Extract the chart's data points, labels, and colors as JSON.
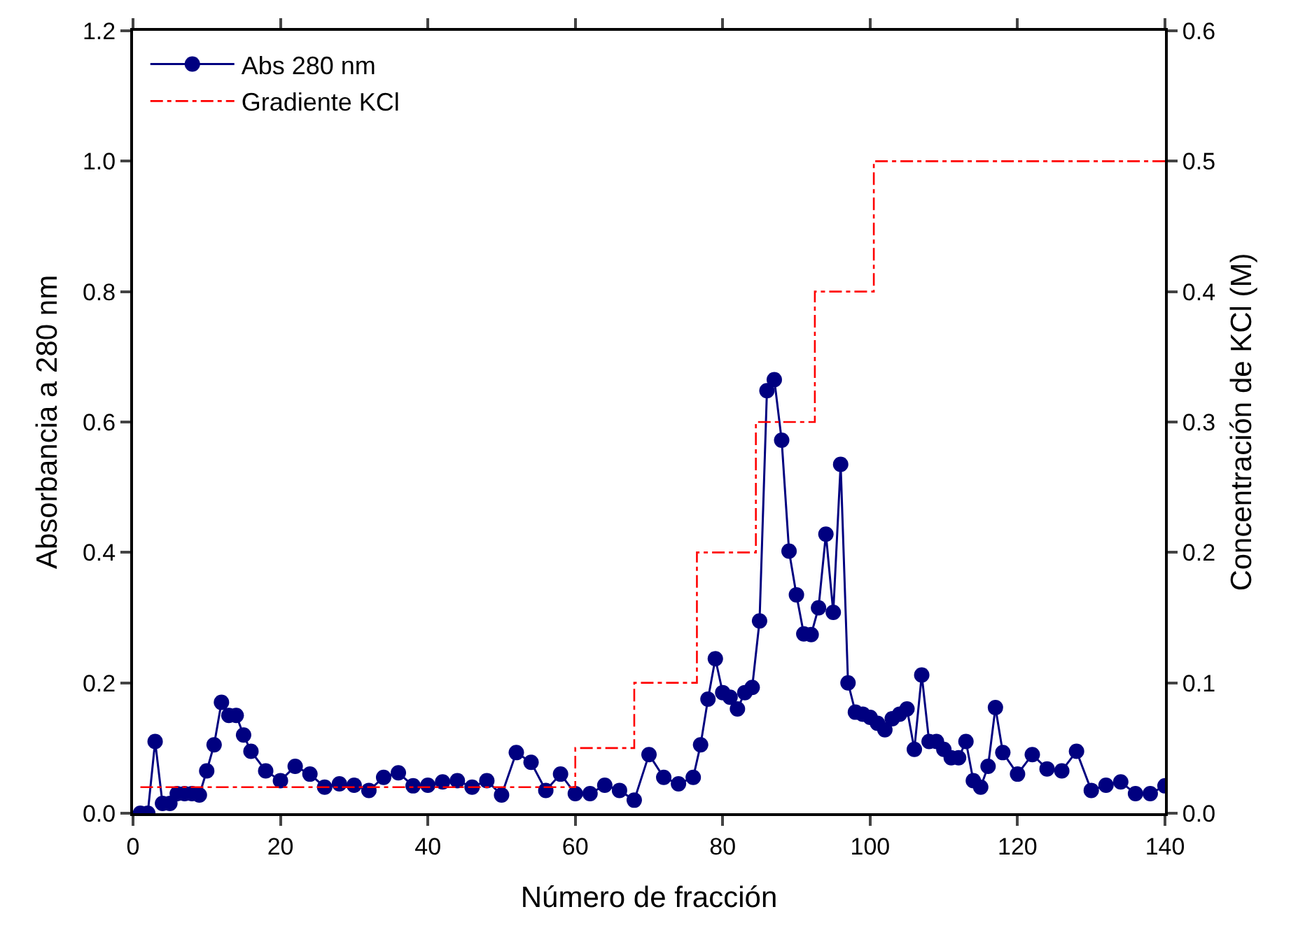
{
  "chart_data": {
    "type": "line",
    "xlabel": "Número de fracción",
    "ylabel": "Absorbancia a 280 nm",
    "y2label": "Concentración de KCl (M)",
    "xlim": [
      0,
      140
    ],
    "xticks": [
      0,
      20,
      40,
      60,
      80,
      100,
      120,
      140
    ],
    "ylim": [
      0,
      1.2
    ],
    "yticks": [
      {
        "value": 0,
        "label": "0.0"
      },
      0.2,
      0.4,
      0.6,
      0.8,
      {
        "value": 1,
        "label": "1.0"
      },
      1.2
    ],
    "y2lim": [
      0,
      0.6
    ],
    "y2ticks": [
      {
        "value": 0,
        "label": "0.0"
      },
      0.1,
      0.2,
      0.3,
      0.4,
      0.5,
      0.6
    ],
    "legend": "top left",
    "series": [
      {
        "name": "Abs 280 nm",
        "color": "#000080",
        "marker": "circle",
        "line_style": "solid",
        "x": [
          1,
          2,
          3,
          4,
          5,
          6,
          7,
          8,
          9,
          10,
          11,
          12,
          13,
          14,
          15,
          16,
          18,
          20,
          22,
          24,
          26,
          28,
          30,
          32,
          34,
          36,
          38,
          40,
          42,
          44,
          46,
          48,
          50,
          52,
          54,
          56,
          58,
          60,
          62,
          64,
          66,
          68,
          70,
          72,
          74,
          76,
          77,
          78,
          79,
          80,
          81,
          82,
          83,
          84,
          85,
          86,
          87,
          88,
          89,
          90,
          91,
          92,
          93,
          94,
          95,
          96,
          97,
          98,
          99,
          100,
          101,
          102,
          103,
          104,
          105,
          106,
          107,
          108,
          109,
          110,
          111,
          112,
          113,
          114,
          115,
          116,
          117,
          118,
          120,
          122,
          124,
          126,
          128,
          130,
          132,
          134,
          136,
          138,
          140
        ],
        "values": [
          0.0,
          0.0,
          0.11,
          0.015,
          0.015,
          0.03,
          0.03,
          0.03,
          0.028,
          0.065,
          0.105,
          0.17,
          0.15,
          0.15,
          0.12,
          0.095,
          0.065,
          0.05,
          0.072,
          0.06,
          0.04,
          0.045,
          0.043,
          0.035,
          0.055,
          0.062,
          0.042,
          0.043,
          0.048,
          0.05,
          0.04,
          0.05,
          0.028,
          0.093,
          0.078,
          0.035,
          0.06,
          0.03,
          0.03,
          0.043,
          0.035,
          0.02,
          0.09,
          0.055,
          0.045,
          0.055,
          0.105,
          0.175,
          0.237,
          0.185,
          0.178,
          0.16,
          0.185,
          0.193,
          0.295,
          0.648,
          0.665,
          0.572,
          0.402,
          0.335,
          0.275,
          0.274,
          0.315,
          0.428,
          0.308,
          0.535,
          0.2,
          0.155,
          0.152,
          0.147,
          0.138,
          0.128,
          0.145,
          0.152,
          0.16,
          0.098,
          0.212,
          0.11,
          0.11,
          0.098,
          0.085,
          0.085,
          0.11,
          0.05,
          0.04,
          0.072,
          0.162,
          0.093,
          0.06,
          0.09,
          0.068,
          0.065,
          0.095,
          0.035,
          0.043,
          0.048,
          0.03,
          0.03,
          0.042
        ]
      },
      {
        "name": "Gradiente KCl",
        "color": "#ff0000",
        "type": "step",
        "axis": "y2",
        "marker": "none",
        "line_style": "dashdot",
        "x": [
          1,
          60,
          68,
          76.5,
          84.5,
          92.5,
          100.5,
          140
        ],
        "values": [
          0.02,
          0.05,
          0.1,
          0.2,
          0.3,
          0.4,
          0.5,
          0.5
        ]
      }
    ]
  }
}
